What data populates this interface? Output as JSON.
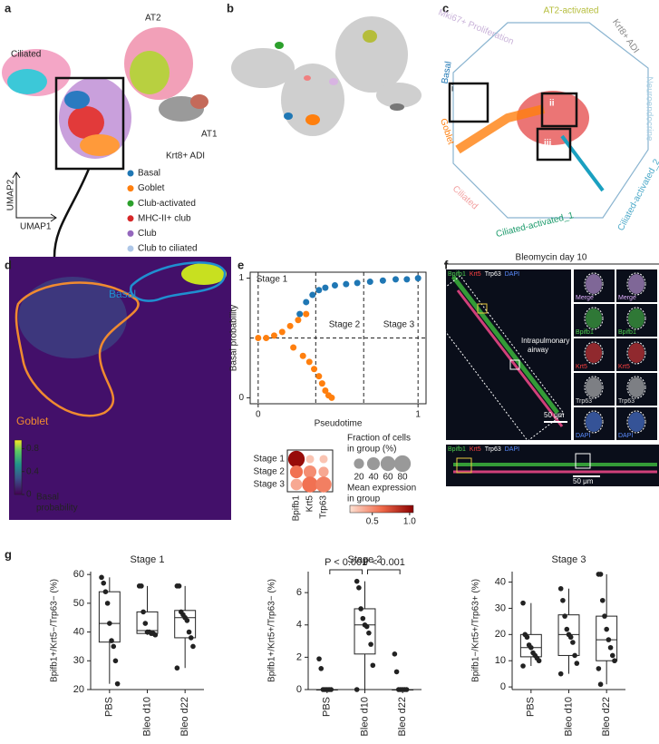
{
  "panel_labels": [
    "a",
    "b",
    "c",
    "d",
    "e",
    "f",
    "g"
  ],
  "a": {
    "clusters": [
      "Ciliated",
      "AT2",
      "AT1",
      "Krt8+ ADI"
    ],
    "x_label": "UMAP1",
    "y_label": "UMAP2",
    "legend": [
      {
        "name": "Basal",
        "color": "#1f77b4"
      },
      {
        "name": "Goblet",
        "color": "#ff7f0e"
      },
      {
        "name": "Club-activated",
        "color": "#2ca02c"
      },
      {
        "name": "MHC-II+ club",
        "color": "#d62728"
      },
      {
        "name": "Club",
        "color": "#9467bd"
      },
      {
        "name": "Club to ciliated",
        "color": "#aec7e8"
      }
    ]
  },
  "c": {
    "labels": [
      "Mki67+ Proliferation",
      "AT2-activated",
      "Krt8+ ADI",
      "Neuroendocrine",
      "Ciliated-activated_2",
      "Ciliated-activated_1",
      "Ciliated",
      "Goblet",
      "Basal"
    ],
    "boxes": [
      "i",
      "ii",
      "iii"
    ]
  },
  "d": {
    "regions": [
      "Basal",
      "Goblet"
    ],
    "colorbar_label": [
      "Basal",
      "probability"
    ],
    "colorbar_lim": [
      0,
      0.95
    ],
    "colorbar_ticks": [
      0,
      0.4,
      0.8
    ]
  },
  "e": {
    "type": "scatter",
    "x_label": "Pseudotime",
    "y_label": "Basal probability",
    "xlim": [
      -0.05,
      1.05
    ],
    "ylim": [
      -0.05,
      1.05
    ],
    "xticks": [
      0,
      1
    ],
    "yticks": [
      0,
      1
    ],
    "stage_labels": [
      "Stage 1",
      "Stage 2",
      "Stage 3"
    ],
    "stage_bounds": [
      0,
      0.36,
      0.66,
      1
    ],
    "threshold": 0.5,
    "series": [
      {
        "color": "#1f77b4",
        "x": [
          0.26,
          0.3,
          0.34,
          0.38,
          0.42,
          0.48,
          0.55,
          0.62,
          0.7,
          0.78,
          0.86,
          0.93,
          1.0
        ],
        "y": [
          0.7,
          0.8,
          0.86,
          0.9,
          0.92,
          0.94,
          0.95,
          0.96,
          0.97,
          0.98,
          0.99,
          0.99,
          1.0
        ]
      },
      {
        "color": "#ff7f0e",
        "x": [
          0.0,
          0.05,
          0.1,
          0.15,
          0.2,
          0.25,
          0.3,
          0.22,
          0.28,
          0.32,
          0.35,
          0.38,
          0.4,
          0.42,
          0.44,
          0.46
        ],
        "y": [
          0.5,
          0.5,
          0.52,
          0.55,
          0.6,
          0.65,
          0.7,
          0.42,
          0.35,
          0.3,
          0.24,
          0.18,
          0.12,
          0.06,
          0.02,
          0.0
        ]
      }
    ]
  },
  "dotplot": {
    "rows": [
      "Stage 1",
      "Stage 2",
      "Stage 3"
    ],
    "columns": [
      "Bpifb1",
      "Krt5",
      "Trp63"
    ],
    "fraction": [
      [
        80,
        10,
        10
      ],
      [
        40,
        40,
        20
      ],
      [
        30,
        70,
        70
      ]
    ],
    "expression": [
      [
        1.0,
        0.3,
        0.3
      ],
      [
        0.6,
        0.5,
        0.4
      ],
      [
        0.4,
        0.6,
        0.55
      ]
    ],
    "size_label": [
      "Fraction of cells",
      "in group (%)"
    ],
    "size_ticks": [
      20,
      40,
      60,
      80
    ],
    "color_label": [
      "Mean expression",
      "in group"
    ],
    "color_lim": [
      0.2,
      1.05
    ],
    "color_ticks": [
      0.5,
      {
        "value": 1,
        "label": "1.0"
      }
    ]
  },
  "f": {
    "title": "Bleomycin day 10",
    "stains": [
      "Bpifb1",
      "Krt5",
      "Trp63",
      "DAPI"
    ],
    "annotation": [
      "Intrapulmonary",
      "airway"
    ],
    "scale_bar": "50 μm",
    "insets": [
      [
        "Merge",
        "Merge"
      ],
      [
        "Bpifb1",
        "Bpifb1"
      ],
      [
        "Krt5",
        "Krt5"
      ],
      [
        "Trp63",
        "Trp63"
      ],
      [
        "DAPI",
        "DAPI"
      ]
    ],
    "strip_stains": [
      "Bpifb1",
      "Krt5",
      "Trp63",
      "DAPI"
    ],
    "strip_scale_bar": "50 μm"
  },
  "chart_data": [
    {
      "type": "box",
      "title": "Stage 1",
      "y_label": "Bpifb1+/Krt5−/Trp63− (%)",
      "categories": [
        "PBS",
        "Bleo d10",
        "Bleo d22"
      ],
      "ylim": [
        20,
        61
      ],
      "yticks": [
        20,
        30,
        40,
        50,
        60
      ],
      "boxes": [
        {
          "min": 22,
          "q1": 36.5,
          "median": 43,
          "q3": 54,
          "max": 59
        },
        {
          "min": 39,
          "q1": 39.5,
          "median": 40.5,
          "q3": 47,
          "max": 56
        },
        {
          "min": 27.5,
          "q1": 38,
          "median": 45,
          "q3": 47.5,
          "max": 56
        }
      ],
      "points": [
        [
          59,
          57,
          54,
          50,
          43,
          37,
          35,
          30,
          22
        ],
        [
          56,
          56,
          47,
          43,
          40,
          40,
          39.5,
          39.5,
          39
        ],
        [
          56,
          56,
          47,
          46,
          45,
          44,
          40,
          38,
          35,
          27.5
        ]
      ]
    },
    {
      "type": "box",
      "title": "Stage 2",
      "y_label": "Bpifb1+/Krt5+/Trp63− (%)",
      "categories": [
        "PBS",
        "Bleo d10",
        "Bleo d22"
      ],
      "ylim": [
        0,
        7.3
      ],
      "yticks": [
        0,
        2,
        4,
        6
      ],
      "boxes": [
        {
          "min": 0,
          "q1": 0,
          "median": 0,
          "q3": 0,
          "max": 0
        },
        {
          "min": 0,
          "q1": 2.2,
          "median": 4,
          "q3": 5,
          "max": 6.7
        },
        {
          "min": 0,
          "q1": 0,
          "median": 0,
          "q3": 0,
          "max": 0
        }
      ],
      "points": [
        [
          1.9,
          1.3,
          0,
          0,
          0,
          0,
          0
        ],
        [
          6.7,
          6.3,
          5,
          4.4,
          4,
          3.9,
          3.5,
          2.8,
          1.5,
          0
        ],
        [
          2.2,
          1.1,
          0,
          0,
          0,
          0,
          0
        ]
      ],
      "significance_labels": [
        "P < 0.001",
        "P < 0.001"
      ]
    },
    {
      "type": "box",
      "title": "Stage 3",
      "y_label": "Bpifb1−/Krt5+/Trp63+ (%)",
      "categories": [
        "PBS",
        "Bleo d10",
        "Bleo d22"
      ],
      "ylim": [
        -1,
        44
      ],
      "yticks": [
        0,
        10,
        20,
        30,
        40
      ],
      "boxes": [
        {
          "min": 8,
          "q1": 11.5,
          "median": 15,
          "q3": 20,
          "max": 32
        },
        {
          "min": 5,
          "q1": 12,
          "median": 20,
          "q3": 27.5,
          "max": 37.5
        },
        {
          "min": 1,
          "q1": 10,
          "median": 18,
          "q3": 27,
          "max": 43
        }
      ],
      "points": [
        [
          32,
          20,
          19,
          16,
          15,
          13,
          12,
          11,
          10,
          8
        ],
        [
          37.5,
          33,
          27,
          22,
          20,
          19,
          17,
          12,
          9,
          5
        ],
        [
          43,
          43,
          33,
          27,
          22,
          18,
          15,
          12,
          10,
          7,
          1
        ]
      ]
    }
  ]
}
